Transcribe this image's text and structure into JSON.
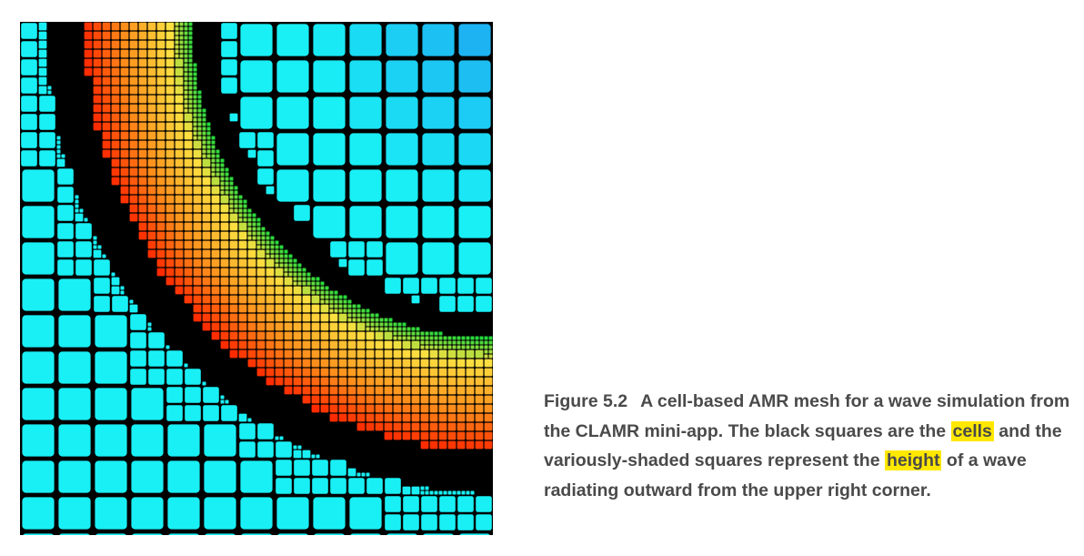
{
  "figure": {
    "label": "Figure 5.2",
    "caption_parts": [
      {
        "text": "A cell-based AMR mesh for a wave simulation from the CLAMR mini-app. The black squares are the ",
        "highlight": false
      },
      {
        "text": "cells",
        "highlight": true
      },
      {
        "text": " and the variously-shaded squares represent the ",
        "highlight": false
      },
      {
        "text": "height",
        "highlight": true
      },
      {
        "text": " of a wave radiating outward from the upper right corner.",
        "highlight": false
      }
    ],
    "highlight_color": "#ffe800",
    "caption_color": "#4a4a4a"
  },
  "mesh": {
    "background_color": "#000000",
    "wave_center": "top-right",
    "colors": {
      "far_field": "#19f0f5",
      "near_field": "#1f9df2",
      "crest_peak": "#ff2a00",
      "crest_high": "#ff8c1a",
      "crest_mid": "#ffe040",
      "crest_low": "#22d93c"
    }
  }
}
